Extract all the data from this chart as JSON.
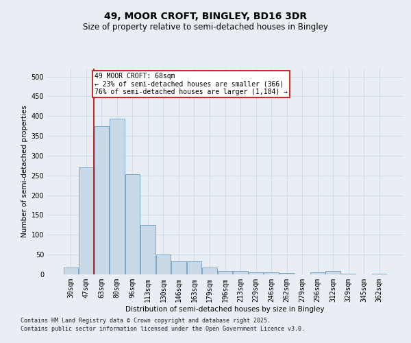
{
  "title": "49, MOOR CROFT, BINGLEY, BD16 3DR",
  "subtitle": "Size of property relative to semi-detached houses in Bingley",
  "xlabel": "Distribution of semi-detached houses by size in Bingley",
  "ylabel": "Number of semi-detached properties",
  "bins": [
    "30sqm",
    "47sqm",
    "63sqm",
    "80sqm",
    "96sqm",
    "113sqm",
    "130sqm",
    "146sqm",
    "163sqm",
    "179sqm",
    "196sqm",
    "213sqm",
    "229sqm",
    "246sqm",
    "262sqm",
    "279sqm",
    "296sqm",
    "312sqm",
    "329sqm",
    "345sqm",
    "362sqm"
  ],
  "bar_heights": [
    18,
    270,
    375,
    393,
    253,
    125,
    50,
    33,
    33,
    18,
    8,
    8,
    5,
    5,
    3,
    0,
    5,
    8,
    2,
    0,
    2
  ],
  "bar_color": "#c9d9e8",
  "bar_edge_color": "#7aaac8",
  "property_line_color": "#cc0000",
  "property_line_x": 1.5,
  "annotation_text": "49 MOOR CROFT: 68sqm\n← 23% of semi-detached houses are smaller (366)\n76% of semi-detached houses are larger (1,184) →",
  "annotation_box_color": "#cc0000",
  "annotation_bg": "#ffffff",
  "ylim": [
    0,
    520
  ],
  "yticks": [
    0,
    50,
    100,
    150,
    200,
    250,
    300,
    350,
    400,
    450,
    500
  ],
  "footer1": "Contains HM Land Registry data © Crown copyright and database right 2025.",
  "footer2": "Contains public sector information licensed under the Open Government Licence v3.0.",
  "background_color": "#e8eef4",
  "plot_bg_color": "#e8eef4",
  "grid_color": "#d0dce8",
  "title_fontsize": 10,
  "subtitle_fontsize": 8.5,
  "axis_label_fontsize": 7.5,
  "tick_fontsize": 7,
  "annotation_fontsize": 7,
  "footer_fontsize": 6
}
